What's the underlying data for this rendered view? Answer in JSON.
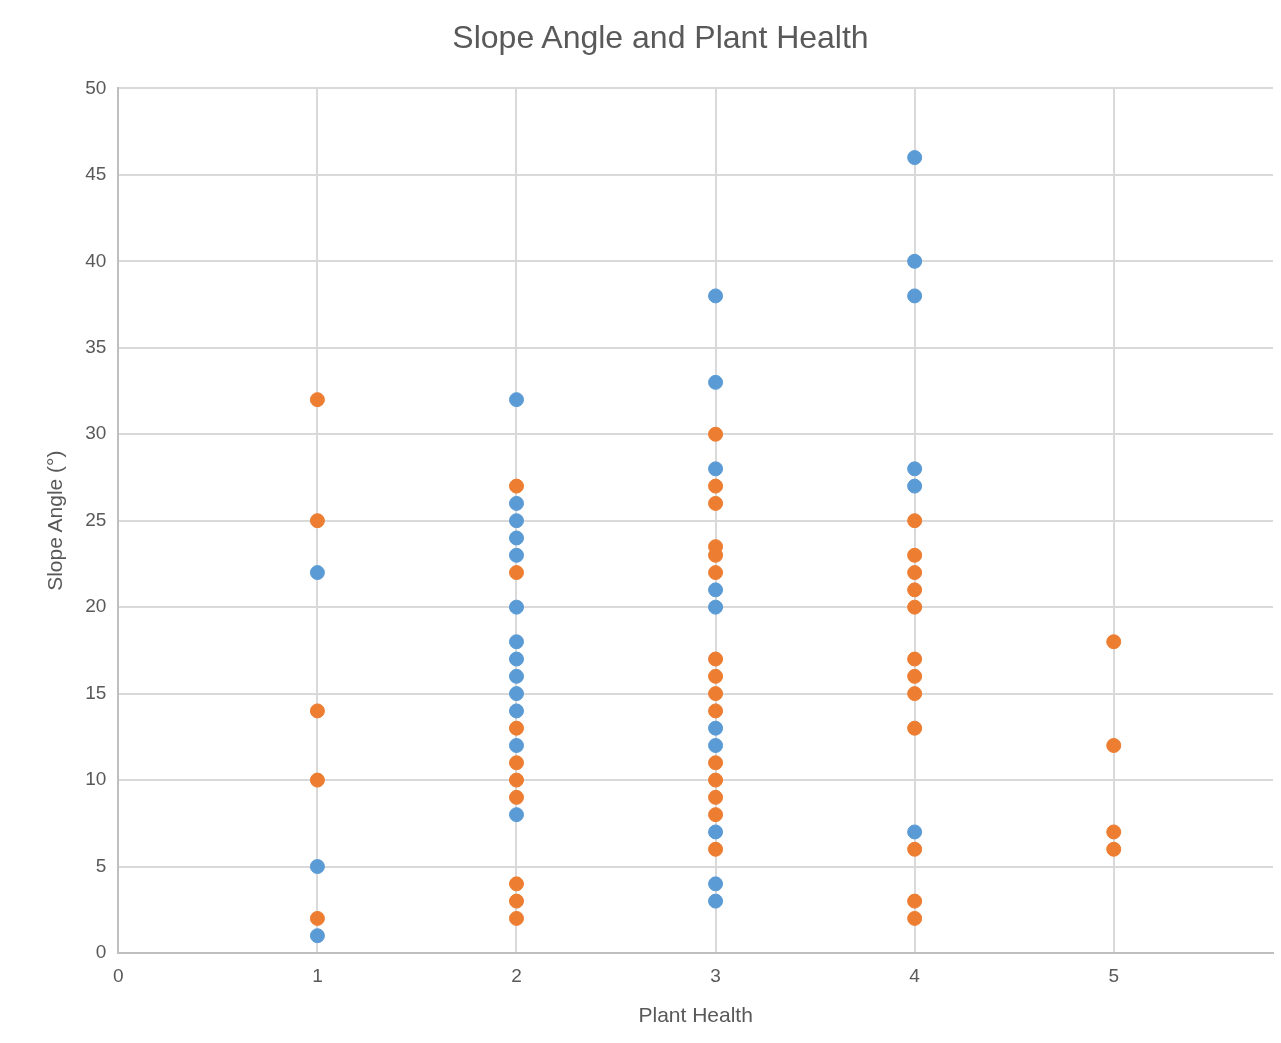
{
  "chart_data": {
    "type": "scatter",
    "title": "Slope Angle and Plant Health",
    "xlabel": "Plant Health",
    "ylabel": "Slope Angle (°)",
    "xlim": [
      0,
      5.8
    ],
    "xticks": [
      0,
      1,
      2,
      3,
      4,
      5
    ],
    "ylim": [
      0,
      50
    ],
    "yticks": [
      0,
      5,
      10,
      15,
      20,
      25,
      30,
      35,
      40,
      45,
      50
    ],
    "grid": true,
    "legend": false,
    "marker": "circle",
    "series": [
      {
        "color": "#5b9bd5",
        "x": [
          1,
          1,
          1,
          2,
          2,
          2,
          2,
          2,
          2,
          2,
          2,
          2,
          2,
          2,
          2,
          2,
          3,
          3,
          3,
          3,
          3,
          3,
          3,
          3,
          3,
          3,
          4,
          4,
          4,
          4,
          4,
          4
        ],
        "values": [
          22,
          5,
          1,
          32,
          26,
          25,
          24,
          23,
          20,
          18,
          17,
          16,
          15,
          14,
          12,
          8,
          38,
          33,
          28,
          21,
          20,
          13,
          12,
          7,
          4,
          3,
          46,
          40,
          38,
          28,
          27,
          7
        ]
      },
      {
        "color": "#ed7d31",
        "x": [
          1,
          1,
          1,
          1,
          1,
          2,
          2,
          2,
          2,
          2,
          2,
          2,
          2,
          2,
          3,
          3,
          3,
          3,
          3,
          3,
          3,
          3,
          3,
          3,
          3,
          3,
          3,
          3,
          3,
          4,
          4,
          4,
          4,
          4,
          4,
          4,
          4,
          4,
          4,
          4,
          4,
          5,
          5,
          5,
          5
        ],
        "values": [
          32,
          25,
          14,
          10,
          2,
          27,
          22,
          13,
          11,
          10,
          9,
          4,
          3,
          2,
          30,
          27,
          26,
          23.5,
          23,
          22,
          17,
          16,
          15,
          14,
          11,
          10,
          9,
          8,
          6,
          25,
          23,
          22,
          21,
          20,
          17,
          16,
          15,
          13,
          6,
          3,
          2,
          18,
          12,
          7,
          6
        ]
      }
    ]
  }
}
